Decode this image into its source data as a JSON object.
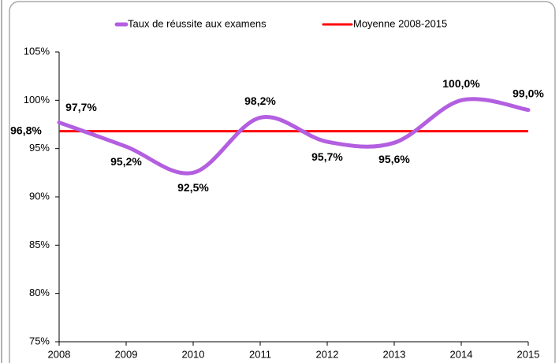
{
  "chart_data": {
    "type": "line",
    "x": [
      2008,
      2009,
      2010,
      2011,
      2012,
      2013,
      2014,
      2015
    ],
    "xlim": [
      2008,
      2015
    ],
    "xticks": [
      2008,
      2009,
      2010,
      2011,
      2012,
      2013,
      2014,
      2015
    ],
    "ylim": [
      75,
      105
    ],
    "yticks": [
      {
        "value": 75,
        "label": "75%"
      },
      {
        "value": 80,
        "label": "80%"
      },
      {
        "value": 85,
        "label": "85%"
      },
      {
        "value": 90,
        "label": "90%"
      },
      {
        "value": 95,
        "label": "95%"
      },
      {
        "value": 100,
        "label": "100%"
      },
      {
        "value": 105,
        "label": "105%"
      }
    ],
    "series": [
      {
        "name": "Taux de réussite aux examens",
        "color": "#b35fe0",
        "values": [
          97.7,
          95.2,
          92.5,
          98.2,
          95.7,
          95.6,
          100.0,
          99.0
        ],
        "value_labels": [
          "97,7%",
          "95,2%",
          "92,5%",
          "98,2%",
          "95,7%",
          "95,6%",
          "100,0%",
          "99,0%"
        ]
      }
    ],
    "reference_line": {
      "name": "Moyenne 2008-2015",
      "color": "#ff0000",
      "value": 96.8,
      "value_label": "96,8%"
    },
    "legend": "top"
  }
}
